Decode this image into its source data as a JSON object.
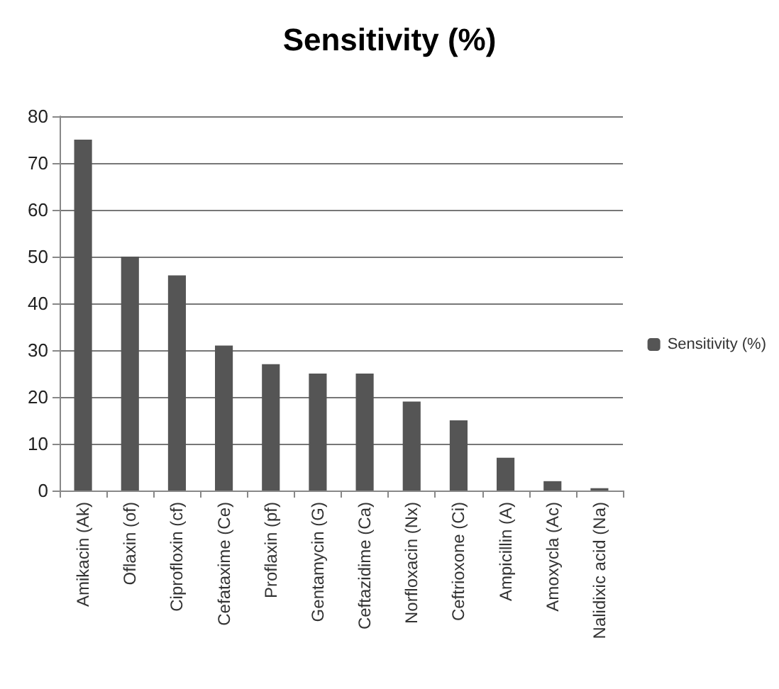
{
  "chart_data": {
    "type": "bar",
    "title": "Sensitivity (%)",
    "categories": [
      "Amikacin (Ak)",
      "Oflaxin (of)",
      "Ciprofloxin (cf)",
      "Cefataxime (Ce)",
      "Proflaxin (pf)",
      "Gentamycin (G)",
      "Ceftazidime (Ca)",
      "Norfloxacin (Nx)",
      "Ceftrioxone (Ci)",
      "Ampicillin (A)",
      "Amoxycla (Ac)",
      "Nalidixic acid (Na)"
    ],
    "series": [
      {
        "name": "Sensitivity (%)",
        "color": "#555555",
        "values": [
          75,
          50,
          46,
          31,
          27,
          25,
          25,
          19,
          15,
          7,
          2,
          0.5
        ]
      }
    ],
    "ylim": [
      0,
      80
    ],
    "yticks": [
      0,
      10,
      20,
      30,
      40,
      50,
      60,
      70,
      80
    ],
    "grid": "y",
    "legend": "right"
  }
}
